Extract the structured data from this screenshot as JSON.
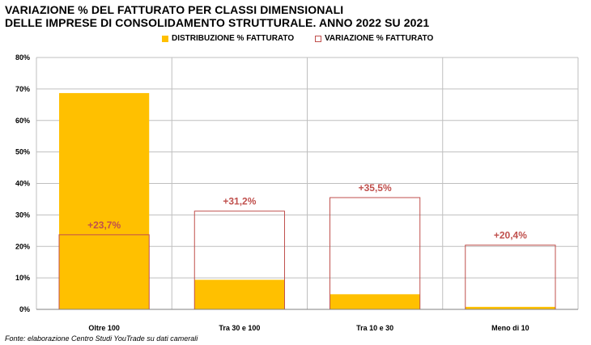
{
  "title_line1": "VARIAZIONE % DEL FATTURATO PER CLASSI DIMENSIONALI",
  "title_line2": "DELLE IMPRESE DI CONSOLIDAMENTO STRUTTURALE. ANNO 2022 SU 2021",
  "legend": {
    "distribution_label": "DISTRIBUZIONE % FATTURATO",
    "variation_label": "VARIAZIONE % FATTURATO"
  },
  "source": "Fonte: elaborazione Centro Studi YouTrade su dati camerali",
  "colors": {
    "distribution": "#FFC000",
    "variation_border": "#C0504D",
    "variation_label": "#C0504D",
    "grid": "#BFBFBF"
  },
  "chart_data": {
    "type": "bar",
    "categories": [
      "Oltre 100",
      "Tra 30 e 100",
      "Tra 10 e 30",
      "Meno di 10"
    ],
    "series": [
      {
        "name": "DISTRIBUZIONE % FATTURATO",
        "values": [
          68.7,
          9.4,
          4.8,
          0.8
        ]
      },
      {
        "name": "VARIAZIONE % FATTURATO",
        "values": [
          23.7,
          31.2,
          35.5,
          20.4
        ],
        "labels": [
          "+23,7%",
          "+31,2%",
          "+35,5%",
          "+20,4%"
        ]
      }
    ],
    "yticks": [
      "0%",
      "10%",
      "20%",
      "30%",
      "40%",
      "50%",
      "60%",
      "70%",
      "80%"
    ],
    "ylim": [
      0,
      80
    ],
    "grid": true,
    "legend_position": "top"
  }
}
